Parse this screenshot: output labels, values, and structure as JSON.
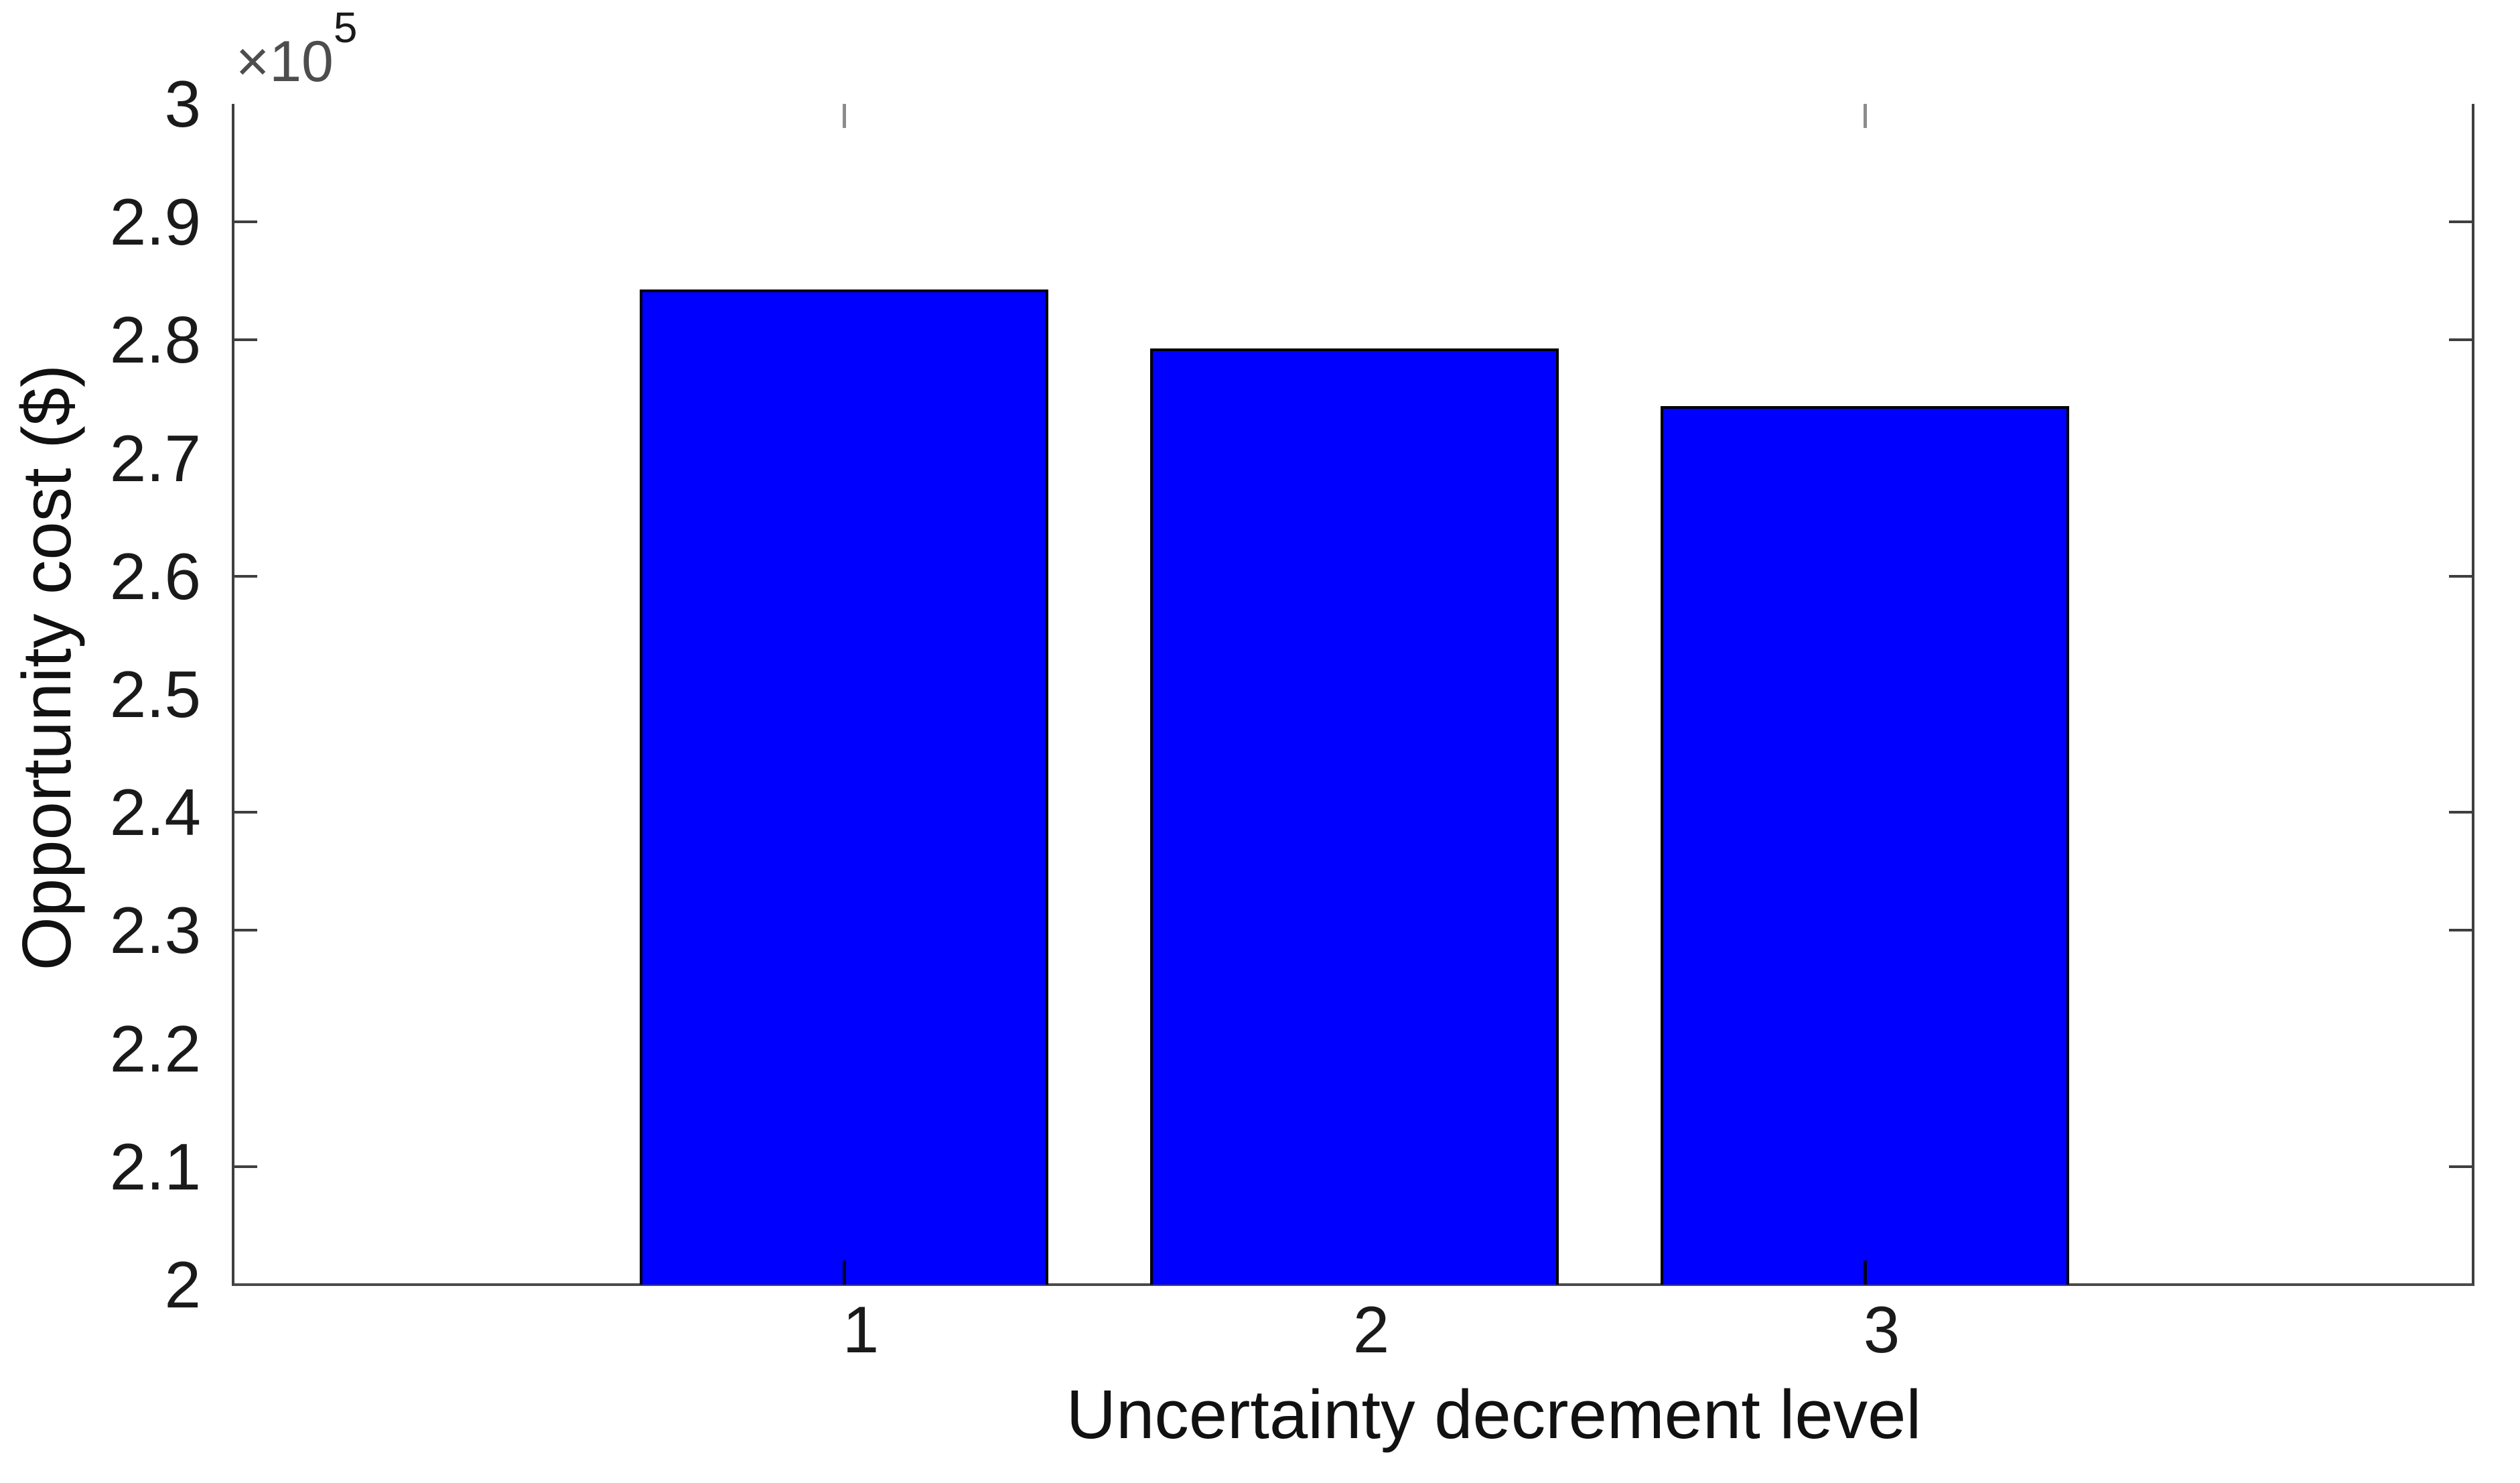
{
  "figure": {
    "background_color": "#ffffff",
    "axis_line_color": "#3f3f3f",
    "text_color": "#1a1a1a"
  },
  "chart_data": {
    "type": "bar",
    "title": "",
    "xlabel": "Uncertainty decrement level",
    "ylabel": "Opportunity cost ($)",
    "categories": [
      "1",
      "2",
      "3"
    ],
    "values": [
      284300,
      279300,
      274400
    ],
    "values_in_units_of_1e5": [
      2.843,
      2.793,
      2.744
    ],
    "ylim": [
      200000,
      300000
    ],
    "xlim_categories_span": [
      -0.2,
      4.2
    ],
    "y_axis_multiplier": {
      "times_base": "×10",
      "exponent": "5"
    },
    "y_tick_labels": [
      "3",
      "2.9",
      "2.8",
      "2.7",
      "2.6",
      "2.5",
      "2.4",
      "2.3",
      "2.2",
      "2.1",
      "2"
    ],
    "y_tick_values": [
      300000,
      290000,
      280000,
      270000,
      260000,
      250000,
      240000,
      230000,
      220000,
      210000,
      200000
    ],
    "bar_color": "#0000ff",
    "bar_edge_color": "#000000",
    "grid": false,
    "legend": null,
    "visible_tick_marks": {
      "left_axis_values": [
        290000,
        280000,
        260000,
        240000,
        230000,
        210000
      ],
      "right_axis_values": [
        290000,
        280000,
        260000,
        240000,
        230000,
        210000
      ],
      "top_axis_categories": [
        "1",
        "3"
      ],
      "bottom_axis_categories": [
        "1",
        "3"
      ]
    }
  }
}
